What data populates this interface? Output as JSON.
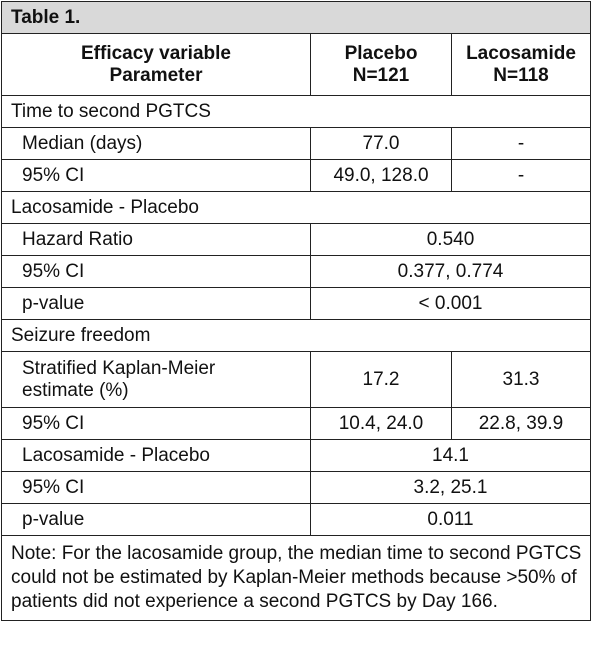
{
  "caption": "Table 1.",
  "header": {
    "col1_line1": "Efficacy variable",
    "col1_line2": "Parameter",
    "col2_line1": "Placebo",
    "col2_line2": "N=121",
    "col3_line1": "Lacosamide",
    "col3_line2": "N=118"
  },
  "rows": [
    {
      "section": "Time to second PGTCS"
    },
    {
      "label": "Median (days)",
      "placebo": "77.0",
      "lacosamide": "-"
    },
    {
      "label": "95% CI",
      "placebo": "49.0, 128.0",
      "lacosamide": "-"
    },
    {
      "section": "Lacosamide - Placebo"
    },
    {
      "label": "Hazard Ratio",
      "merged": "0.540"
    },
    {
      "label": "95% CI",
      "merged": "0.377, 0.774"
    },
    {
      "label": "p-value",
      "merged": "< 0.001"
    },
    {
      "section": "Seizure freedom"
    },
    {
      "label_line1": "Stratified Kaplan-Meier",
      "label_line2": "estimate (%)",
      "placebo": "17.2",
      "lacosamide": "31.3"
    },
    {
      "label": "95% CI",
      "placebo": "10.4, 24.0",
      "lacosamide": "22.8, 39.9"
    },
    {
      "label": "Lacosamide - Placebo",
      "merged": "14.1"
    },
    {
      "label": "95% CI",
      "merged": "3.2, 25.1"
    },
    {
      "label": "p-value",
      "merged": "0.011"
    }
  ],
  "note": "Note: For the lacosamide group, the median time to second PGTCS could not be estimated by Kaplan-Meier methods because >50% of patients did not experience a second PGTCS by Day 166."
}
